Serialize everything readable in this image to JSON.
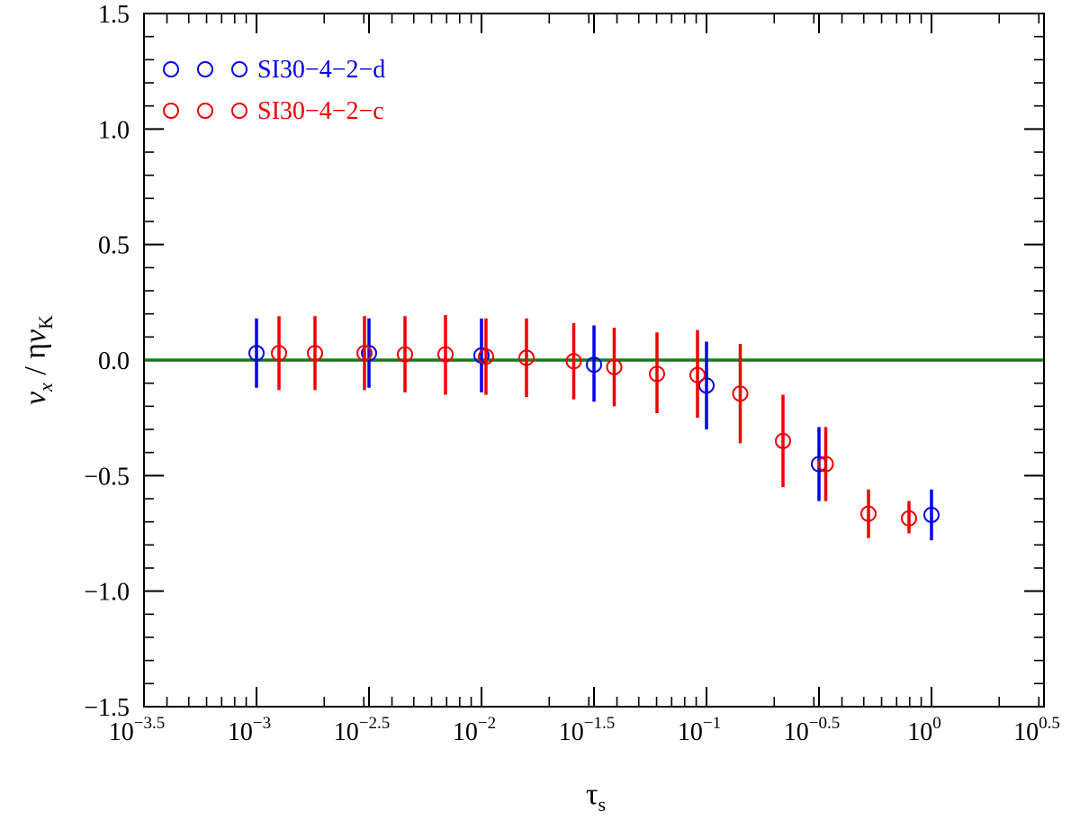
{
  "chart_data": {
    "type": "scatter",
    "title": "",
    "xlabel": "τ",
    "xlabel_sub": "s",
    "ylabel": {
      "v": "v",
      "x_sub": "x",
      "slash": " / ",
      "eta": "η",
      "vK": "v",
      "K_sub": "K"
    },
    "x_scale": "log10",
    "xlim": [
      -3.5,
      0.5
    ],
    "ylim": [
      -1.5,
      1.5
    ],
    "x_ticks": [
      {
        "base": "10",
        "exp": "−3.5",
        "value": -3.5
      },
      {
        "base": "10",
        "exp": "−3",
        "value": -3.0
      },
      {
        "base": "10",
        "exp": "−2.5",
        "value": -2.5
      },
      {
        "base": "10",
        "exp": "−2",
        "value": -2.0
      },
      {
        "base": "10",
        "exp": "−1.5",
        "value": -1.5
      },
      {
        "base": "10",
        "exp": "−1",
        "value": -1.0
      },
      {
        "base": "10",
        "exp": "−0.5",
        "value": -0.5
      },
      {
        "base": "10",
        "exp": "0",
        "value": 0.0
      },
      {
        "base": "10",
        "exp": "0.5",
        "value": 0.5
      }
    ],
    "y_ticks": [
      {
        "label": "1.5",
        "value": 1.5
      },
      {
        "label": "1.0",
        "value": 1.0
      },
      {
        "label": "0.5",
        "value": 0.5
      },
      {
        "label": "0.0",
        "value": 0.0
      },
      {
        "label": "−0.5",
        "value": -0.5
      },
      {
        "label": "−1.0",
        "value": -1.0
      },
      {
        "label": "−1.5",
        "value": -1.5
      }
    ],
    "reference_line": {
      "y": 0.0,
      "color": "#1a7a1a"
    },
    "grid": false,
    "legend_position": "top-left",
    "series": [
      {
        "name": "SI30−4−2−d",
        "color": "#0000ee",
        "points": [
          {
            "x": -3.0,
            "y": 0.03,
            "lo": -0.12,
            "hi": 0.18
          },
          {
            "x": -2.5,
            "y": 0.03,
            "lo": -0.12,
            "hi": 0.18
          },
          {
            "x": -2.0,
            "y": 0.02,
            "lo": -0.14,
            "hi": 0.18
          },
          {
            "x": -1.5,
            "y": -0.02,
            "lo": -0.18,
            "hi": 0.15
          },
          {
            "x": -1.0,
            "y": -0.11,
            "lo": -0.3,
            "hi": 0.08
          },
          {
            "x": -0.5,
            "y": -0.45,
            "lo": -0.61,
            "hi": -0.29
          },
          {
            "x": 0.0,
            "y": -0.67,
            "lo": -0.78,
            "hi": -0.56
          }
        ]
      },
      {
        "name": "SI30−4−2−c",
        "color": "#ee0000",
        "points": [
          {
            "x": -2.9,
            "y": 0.03,
            "lo": -0.13,
            "hi": 0.19
          },
          {
            "x": -2.74,
            "y": 0.03,
            "lo": -0.13,
            "hi": 0.19
          },
          {
            "x": -2.52,
            "y": 0.03,
            "lo": -0.13,
            "hi": 0.19
          },
          {
            "x": -2.34,
            "y": 0.025,
            "lo": -0.14,
            "hi": 0.19
          },
          {
            "x": -2.16,
            "y": 0.025,
            "lo": -0.15,
            "hi": 0.195
          },
          {
            "x": -1.98,
            "y": 0.015,
            "lo": -0.15,
            "hi": 0.18
          },
          {
            "x": -1.8,
            "y": 0.01,
            "lo": -0.16,
            "hi": 0.18
          },
          {
            "x": -1.59,
            "y": -0.005,
            "lo": -0.17,
            "hi": 0.16
          },
          {
            "x": -1.41,
            "y": -0.03,
            "lo": -0.2,
            "hi": 0.14
          },
          {
            "x": -1.22,
            "y": -0.06,
            "lo": -0.23,
            "hi": 0.12
          },
          {
            "x": -1.04,
            "y": -0.065,
            "lo": -0.25,
            "hi": 0.13
          },
          {
            "x": -0.85,
            "y": -0.145,
            "lo": -0.36,
            "hi": 0.07
          },
          {
            "x": -0.66,
            "y": -0.35,
            "lo": -0.55,
            "hi": -0.15
          },
          {
            "x": -0.47,
            "y": -0.45,
            "lo": -0.61,
            "hi": -0.29
          },
          {
            "x": -0.28,
            "y": -0.665,
            "lo": -0.77,
            "hi": -0.56
          },
          {
            "x": -0.1,
            "y": -0.685,
            "lo": -0.75,
            "hi": -0.61
          }
        ]
      }
    ]
  }
}
